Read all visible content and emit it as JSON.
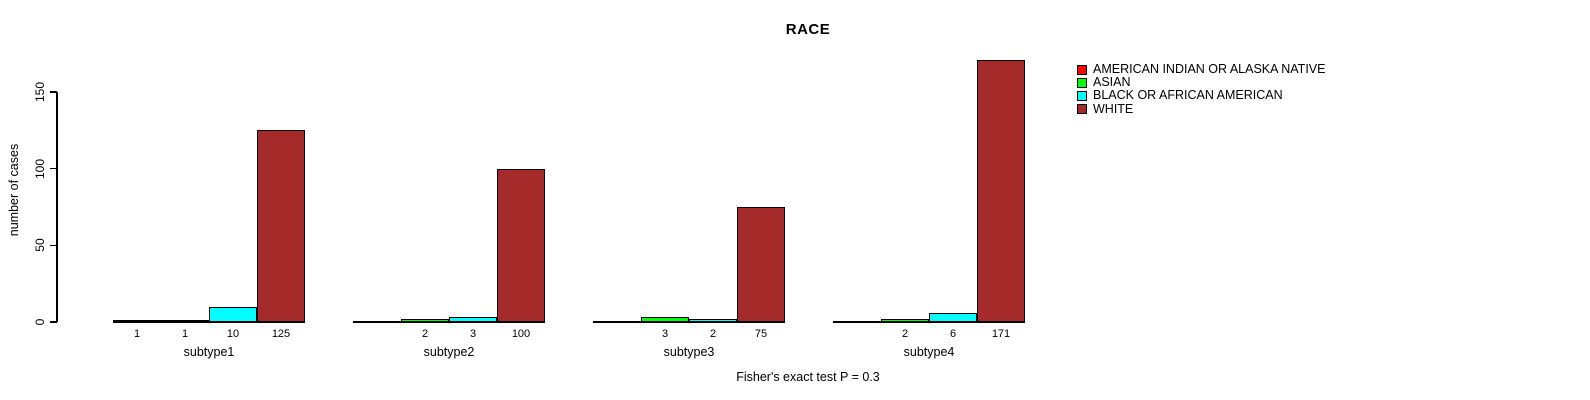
{
  "chart_data": {
    "type": "bar",
    "title": "RACE",
    "xlabel": "",
    "ylabel": "number of cases",
    "yticks": [
      0,
      50,
      100,
      150
    ],
    "ylim": [
      0,
      150
    ],
    "grid": false,
    "legend_position": "right",
    "categories": [
      "subtype1",
      "subtype2",
      "subtype3",
      "subtype4"
    ],
    "series": [
      {
        "name": "AMERICAN INDIAN OR ALASKA NATIVE",
        "color": "#FF0000",
        "values": [
          1,
          null,
          null,
          null
        ]
      },
      {
        "name": "ASIAN",
        "color": "#00FF00",
        "values": [
          1,
          2,
          3,
          2
        ]
      },
      {
        "name": "BLACK OR AFRICAN AMERICAN",
        "color": "#00FFFF",
        "values": [
          10,
          3,
          2,
          6
        ]
      },
      {
        "name": "WHITE",
        "color": "#A52A2A",
        "values": [
          125,
          100,
          75,
          171
        ]
      }
    ],
    "annotation": "Fisher's exact test P = 0.3"
  }
}
